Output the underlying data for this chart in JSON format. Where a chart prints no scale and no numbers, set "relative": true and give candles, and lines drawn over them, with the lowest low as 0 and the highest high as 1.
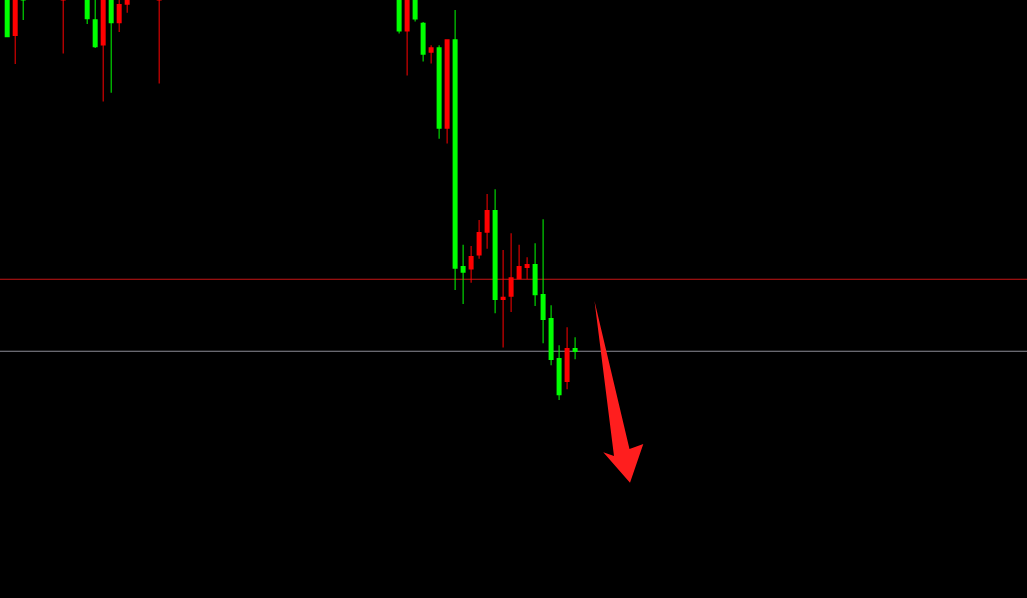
{
  "chart_data": {
    "type": "candlestick",
    "relative": true,
    "tick_labels": false,
    "categories": [
      null,
      null,
      null,
      null,
      null,
      null,
      null,
      null,
      null,
      null,
      null,
      null,
      null,
      null,
      null,
      null,
      null,
      null,
      null,
      null,
      null,
      null,
      null,
      null,
      null,
      null,
      null,
      null,
      null,
      null,
      null,
      null,
      null,
      null,
      null,
      null,
      null,
      null,
      null,
      null,
      null,
      null,
      null,
      null,
      null,
      null,
      null,
      null,
      null,
      null,
      null,
      null,
      null,
      null,
      null,
      null,
      null,
      null,
      null,
      null,
      null,
      null,
      null,
      null,
      null,
      null,
      null,
      null,
      null,
      null,
      null,
      null,
      null,
      null,
      null,
      null,
      null,
      null,
      null,
      null,
      null,
      null,
      null,
      null,
      null,
      null,
      null,
      null,
      null,
      null,
      null,
      null,
      null,
      null,
      null,
      null,
      null,
      null,
      null,
      null,
      null,
      null,
      null,
      null,
      null,
      null,
      null,
      null,
      null,
      null,
      null,
      null,
      null,
      null,
      null,
      null,
      null,
      null,
      null,
      null,
      null,
      null,
      null,
      null,
      null,
      null,
      null,
      null
    ],
    "ohlc": [
      [
        1,
        1,
        0.907,
        0.907
      ],
      [
        0.91,
        1,
        0.84,
        1
      ],
      [
        1,
        1,
        0.95,
        1
      ],
      null,
      null,
      null,
      null,
      [
        1,
        1,
        0.866,
        1
      ],
      null,
      null,
      [
        1,
        1,
        0.94,
        0.952
      ],
      [
        0.952,
        1,
        0.88,
        0.882
      ],
      [
        0.886,
        1,
        0.746,
        1
      ],
      [
        1,
        1,
        0.768,
        0.942
      ],
      [
        0.942,
        1,
        0.92,
        0.99
      ],
      [
        0.988,
        1,
        0.968,
        1
      ],
      null,
      null,
      null,
      [
        1,
        1,
        0.791,
        1
      ],
      null,
      null,
      null,
      null,
      null,
      null,
      null,
      null,
      null,
      null,
      null,
      null,
      null,
      null,
      null,
      null,
      null,
      null,
      null,
      null,
      null,
      null,
      null,
      null,
      null,
      null,
      null,
      null,
      null,
      [
        1,
        1,
        0.916,
        0.921
      ],
      [
        0.921,
        1,
        0.811,
        1
      ],
      [
        1,
        1,
        0.946,
        0.951
      ],
      [
        0.943,
        0.945,
        0.846,
        0.863
      ],
      [
        0.868,
        0.887,
        0.841,
        0.882
      ],
      [
        0.882,
        0.887,
        0.653,
        0.678
      ],
      [
        0.678,
        0.902,
        0.641,
        0.902
      ],
      [
        0.902,
        0.975,
        0.275,
        0.328
      ],
      [
        0.335,
        0.388,
        0.24,
        0.318
      ],
      [
        0.326,
        0.385,
        0.293,
        0.36
      ],
      [
        0.361,
        0.45,
        0.353,
        0.42
      ],
      [
        0.418,
        0.515,
        0.378,
        0.475
      ],
      [
        0.475,
        0.527,
        0.217,
        0.25
      ],
      [
        0.25,
        0.375,
        0.131,
        0.258
      ],
      [
        0.258,
        0.417,
        0.22,
        0.307
      ],
      [
        0.302,
        0.388,
        0.302,
        0.335
      ],
      [
        0.33,
        0.357,
        0.302,
        0.34
      ],
      [
        0.34,
        0.392,
        0.235,
        0.262
      ],
      [
        0.265,
        0.452,
        0.142,
        0.2
      ],
      [
        0.205,
        0.237,
        0.087,
        0.1
      ],
      [
        0.105,
        0.137,
        0,
        0.012
      ],
      [
        0.045,
        0.182,
        0.027,
        0.13
      ],
      [
        0.13,
        0.157,
        0.102,
        0.12
      ],
      null,
      null,
      null,
      null,
      null,
      null,
      null,
      null,
      null,
      null,
      null,
      null,
      null,
      null,
      null,
      null,
      null,
      null,
      null,
      null,
      null,
      null,
      null,
      null,
      null,
      null,
      null,
      null,
      null,
      null,
      null,
      null,
      null,
      null,
      null,
      null,
      null,
      null,
      null,
      null,
      null,
      null,
      null,
      null,
      null,
      null,
      null,
      null,
      null,
      null,
      null,
      null,
      null,
      null,
      null,
      null
    ],
    "colors": [
      "#00ff00",
      "#ff0000",
      "#00ff00",
      null,
      null,
      null,
      null,
      "#ff0000",
      null,
      null,
      "#00ff00",
      "#00ff00",
      "#ff0000",
      "#00ff00",
      "#ff0000",
      "#ff0000",
      null,
      null,
      null,
      "#ff0000",
      null,
      null,
      null,
      null,
      null,
      null,
      null,
      null,
      null,
      null,
      null,
      null,
      null,
      null,
      null,
      null,
      null,
      null,
      null,
      null,
      null,
      null,
      null,
      null,
      null,
      null,
      null,
      null,
      null,
      "#00ff00",
      "#ff0000",
      "#00ff00",
      "#00ff00",
      "#ff0000",
      "#00ff00",
      "#ff0000",
      "#00ff00",
      "#00ff00",
      "#ff0000",
      "#ff0000",
      "#ff0000",
      "#00ff00",
      "#ff0000",
      "#ff0000",
      "#ff0000",
      "#ff0000",
      "#00ff00",
      "#00ff00",
      "#00ff00",
      "#00ff00",
      "#ff0000",
      "#00ff00",
      null,
      null,
      null,
      null,
      null,
      null,
      null,
      null,
      null,
      null,
      null,
      null,
      null,
      null,
      null,
      null,
      null,
      null,
      null,
      null,
      null,
      null,
      null,
      null,
      null,
      null,
      null,
      null,
      null,
      null,
      null,
      null,
      null,
      null,
      null,
      null,
      null,
      null,
      null,
      null,
      null,
      null,
      null,
      null,
      null,
      null,
      null,
      null,
      null,
      null,
      null,
      null,
      null,
      null,
      null,
      null
    ],
    "ref_lines": [
      {
        "axis": "y",
        "value": 0.302,
        "color": "#c81414"
      },
      {
        "axis": "y",
        "value": 0.122,
        "color": "#8c8c96"
      }
    ]
  }
}
